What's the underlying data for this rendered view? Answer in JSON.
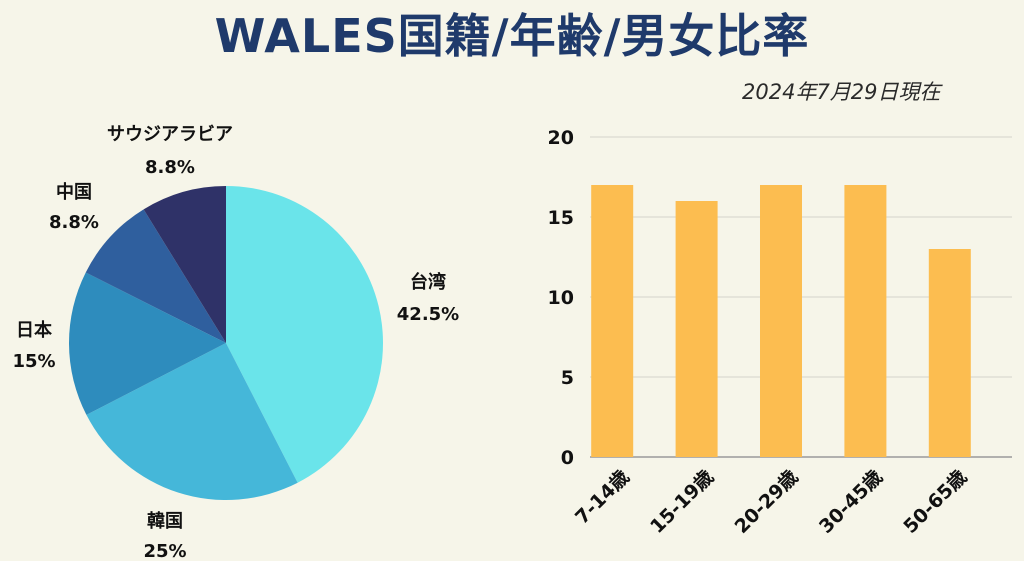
{
  "header": {
    "title": "WALES国籍/年齢/男女比率",
    "date": "2024年7月29日現在"
  },
  "chart_data": [
    {
      "type": "pie",
      "slices": [
        {
          "label": "台湾",
          "value": 42.5,
          "value_label": "42.5%",
          "color": "#6ae4ea"
        },
        {
          "label": "韓国",
          "value": 25,
          "value_label": "25%",
          "color": "#45b7d9"
        },
        {
          "label": "日本",
          "value": 15,
          "value_label": "15%",
          "color": "#2e8cbd"
        },
        {
          "label": "中国",
          "value": 8.8,
          "value_label": "8.8%",
          "color": "#2f5f9e"
        },
        {
          "label": "サウジアラビア",
          "value": 8.8,
          "value_label": "8.8%",
          "color": "#2f3268"
        }
      ]
    },
    {
      "type": "bar",
      "categories": [
        "7-14歳",
        "15-19歳",
        "20-29歳",
        "30-45歳",
        "50-65歳"
      ],
      "values": [
        17,
        16,
        17,
        17,
        13
      ],
      "ylim": [
        0,
        20
      ],
      "yticks": [
        0,
        5,
        10,
        15,
        20
      ],
      "grid": true,
      "bar_color": "#fcbd50"
    }
  ]
}
